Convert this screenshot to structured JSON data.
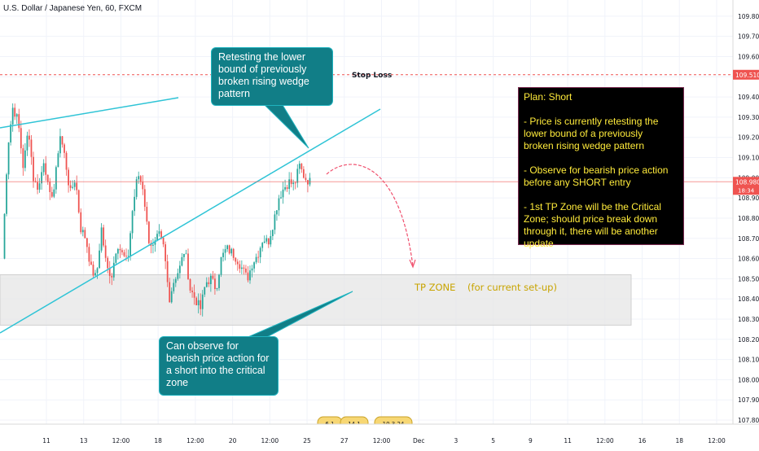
{
  "symbol_title": "U.S. Dollar / Japanese Yen, 60, FXCM",
  "colors": {
    "up": "#26a69a",
    "down": "#ef5350",
    "trend": "#2fc4d6",
    "stop": "#ef5350",
    "tp_zone": "#e6e6e6",
    "callout_bg": "#117e87",
    "plan_text": "#ffeb3b",
    "arrow": "#f0506e"
  },
  "annotations": {
    "stop_loss": "Stop Loss",
    "tp_zone": "TP ZONE    (for current set-up)",
    "callout_top": "Retesting the lower\nbound of previously\nbroken rising wedge\npattern",
    "callout_bottom": "Can observe for\nbearish price action for\na short into the critical\nzone",
    "plan": "Plan: Short\n\n- Price is currently retesting the\nlower bound of a previously\nbroken rising wedge pattern\n\n- Observe for bearish price action\nbefore any SHORT entry\n\n- 1st TP Zone will be the Critical\nZone; should price break down\nthrough it, there will be another\nupdate"
  },
  "price_tags": {
    "stop": "109.510",
    "current": "108.980",
    "countdown": "18:34"
  },
  "event_badges": [
    "6 1",
    "14 1",
    "10 3 24"
  ],
  "chart_data": {
    "type": "candlestick",
    "symbol": "USDJPY",
    "timeframe": "60",
    "y_ticks": [
      "109.800",
      "109.700",
      "109.600",
      "109.500",
      "109.400",
      "109.300",
      "109.200",
      "109.100",
      "109.000",
      "108.900",
      "108.800",
      "108.700",
      "108.600",
      "108.500",
      "108.400",
      "108.300",
      "108.200",
      "108.100",
      "108.000",
      "107.900",
      "107.800"
    ],
    "ylim": [
      107.78,
      109.88
    ],
    "x_ticks": [
      "11",
      "13",
      "12:00",
      "18",
      "12:00",
      "20",
      "12:00",
      "25",
      "27",
      "12:00",
      "Dec",
      "3",
      "5",
      "9",
      "11",
      "12:00",
      "16",
      "18",
      "12:00"
    ],
    "stop_loss": 109.51,
    "current_price": 108.98,
    "tp_zone": [
      108.27,
      108.52
    ],
    "close_path": [
      108.6,
      109.15,
      109.35,
      109.28,
      109.05,
      109.25,
      108.98,
      108.95,
      109.1,
      108.9,
      108.95,
      109.22,
      109.1,
      108.92,
      109.0,
      108.75,
      108.7,
      108.55,
      108.5,
      108.75,
      108.55,
      108.52,
      108.68,
      108.62,
      108.58,
      108.85,
      109.02,
      108.95,
      108.7,
      108.65,
      108.72,
      108.65,
      108.4,
      108.5,
      108.55,
      108.65,
      108.45,
      108.4,
      108.35,
      108.48,
      108.5,
      108.45,
      108.6,
      108.65,
      108.63,
      108.6,
      108.55,
      108.5,
      108.58,
      108.62,
      108.7,
      108.68,
      108.78,
      108.9,
      108.95,
      108.98,
      108.96,
      109.06,
      109.0,
      108.98
    ]
  }
}
